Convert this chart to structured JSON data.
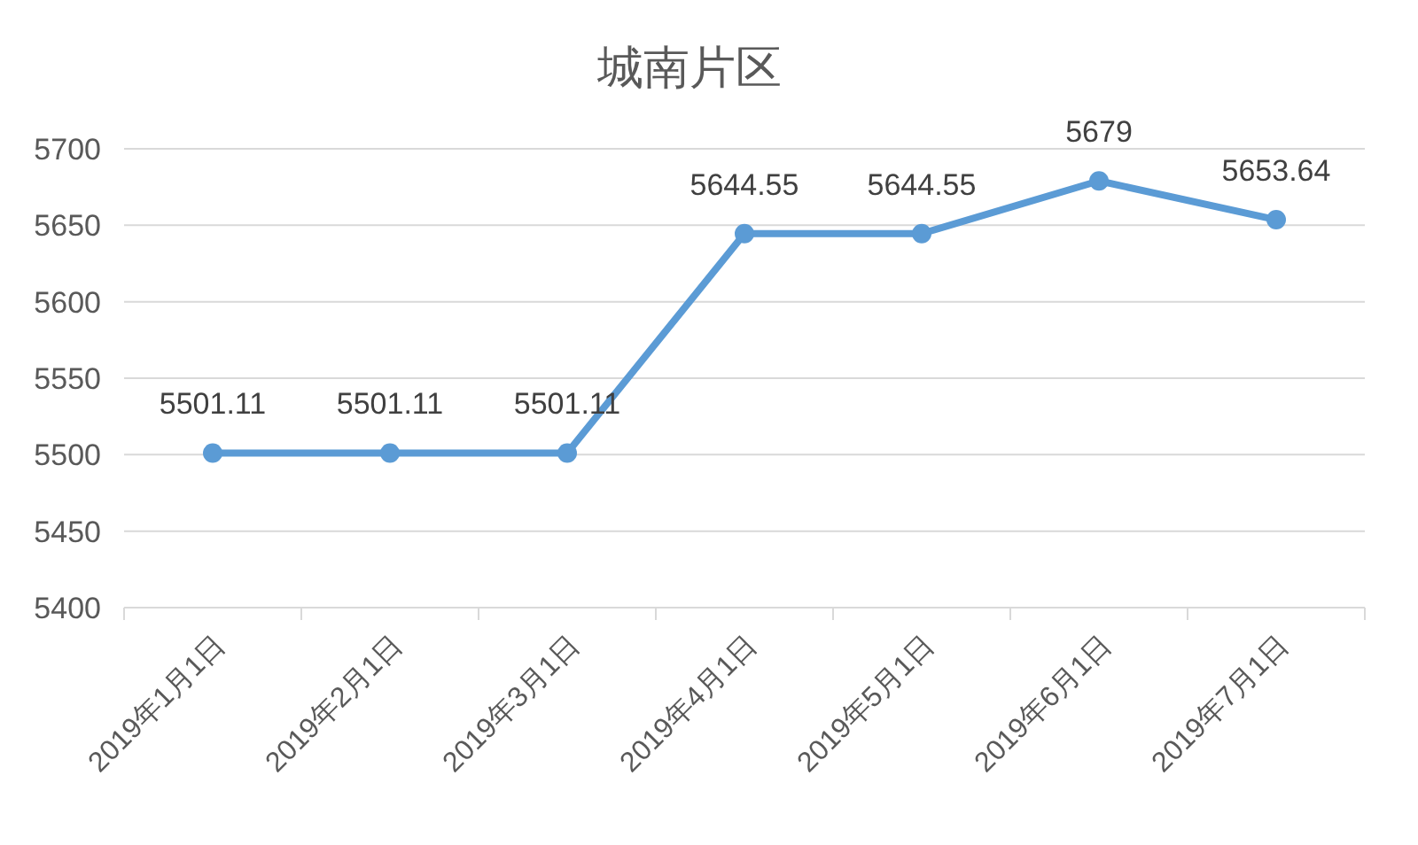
{
  "chart_data": {
    "type": "line",
    "title": "城南片区",
    "categories": [
      "2019年1月1日",
      "2019年2月1日",
      "2019年3月1日",
      "2019年4月1日",
      "2019年5月1日",
      "2019年6月1日",
      "2019年7月1日"
    ],
    "series": [
      {
        "color": "#5b9bd5",
        "values": [
          5501.11,
          5501.11,
          5501.11,
          5644.55,
          5644.55,
          5679,
          5653.64
        ]
      }
    ],
    "ylim": [
      5400,
      5700
    ],
    "yticks": [
      5400,
      5450,
      5500,
      5550,
      5600,
      5650,
      5700
    ],
    "grid": "y",
    "marker": "circle",
    "line_style": "solid",
    "data_labels": true
  }
}
